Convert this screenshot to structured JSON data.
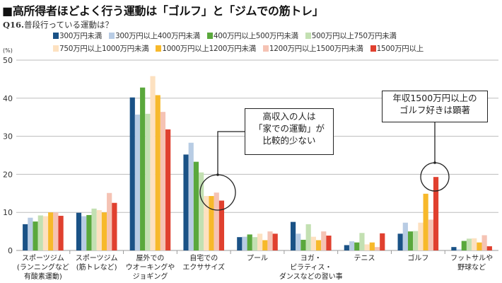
{
  "header": {
    "title": "■高所得者ほどよく行う運動は「ゴルフ」と「ジムでの筋トレ」",
    "question_no": "Q16.",
    "question": "普段行っている運動は？"
  },
  "annotations": [
    {
      "text_lines": [
        "高収入の人は",
        "「家での運動」が",
        "比較的少ない"
      ],
      "target_category": "自宅でのエクササイズ"
    },
    {
      "text_lines": [
        "年収1500万円以上の",
        "ゴルフ好きは顕著"
      ],
      "target_category": "ゴルフ"
    }
  ],
  "chart_data": {
    "type": "bar",
    "title": "高所得者ほどよく行う運動は「ゴルフ」と「ジムでの筋トレ」",
    "subtitle": "Q16.普段行っている運動は？",
    "xlabel": "",
    "ylabel": "(%)",
    "ylim": [
      0,
      50
    ],
    "yticks": [
      0,
      10,
      20,
      30,
      40,
      50
    ],
    "grid": true,
    "legend_position": "top",
    "categories": [
      [
        "スポーツジム",
        "(ランニングなど",
        "有酸素運動)"
      ],
      [
        "スポーツジム",
        "(筋トレなど)"
      ],
      [
        "屋外での",
        "ウオーキングや",
        "ジョギング"
      ],
      [
        "自宅での",
        "エクササイズ"
      ],
      [
        "プール"
      ],
      [
        "ヨガ・",
        "ピラティス・",
        "ダンスなどの習い事"
      ],
      [
        "テニス"
      ],
      [
        "ゴルフ"
      ],
      [
        "フットサルや",
        "野球など"
      ]
    ],
    "series": [
      {
        "name": "300万円未満",
        "color": "#1a5286",
        "values": [
          6.9,
          9.9,
          40.2,
          25.2,
          3.5,
          7.5,
          1.4,
          4.4,
          0.9
        ]
      },
      {
        "name": "300万円以上400万円未満",
        "color": "#b8cce4",
        "values": [
          8.6,
          9.0,
          35.7,
          28.3,
          3.6,
          4.4,
          2.4,
          7.3,
          0.3
        ]
      },
      {
        "name": "400万円以上500万円未満",
        "color": "#5aa83c",
        "values": [
          7.6,
          9.3,
          42.8,
          23.3,
          4.2,
          2.8,
          2.1,
          5.0,
          2.5
        ]
      },
      {
        "name": "500万円以上750万円未満",
        "color": "#c3e0b2",
        "values": [
          9.2,
          11.0,
          35.9,
          20.5,
          3.5,
          6.9,
          4.6,
          5.1,
          3.1
        ]
      },
      {
        "name": "750万円以上1000万円未満",
        "color": "#fde1c0",
        "values": [
          9.0,
          10.6,
          45.8,
          14.3,
          4.4,
          3.6,
          1.6,
          7.3,
          3.2
        ]
      },
      {
        "name": "1000万円以上1200万円未満",
        "color": "#f7b92b",
        "values": [
          10.0,
          10.0,
          40.8,
          14.3,
          2.7,
          2.7,
          2.1,
          14.9,
          2.1
        ]
      },
      {
        "name": "1200万円以上1500万円未満",
        "color": "#f5c3b4",
        "values": [
          10.0,
          15.1,
          36.4,
          15.2,
          5.0,
          5.0,
          0.9,
          8.1,
          4.0
        ]
      },
      {
        "name": "1500万円以上",
        "color": "#e0402f",
        "values": [
          9.1,
          12.5,
          31.8,
          13.1,
          4.4,
          3.9,
          4.5,
          19.3,
          1.1
        ]
      }
    ]
  }
}
